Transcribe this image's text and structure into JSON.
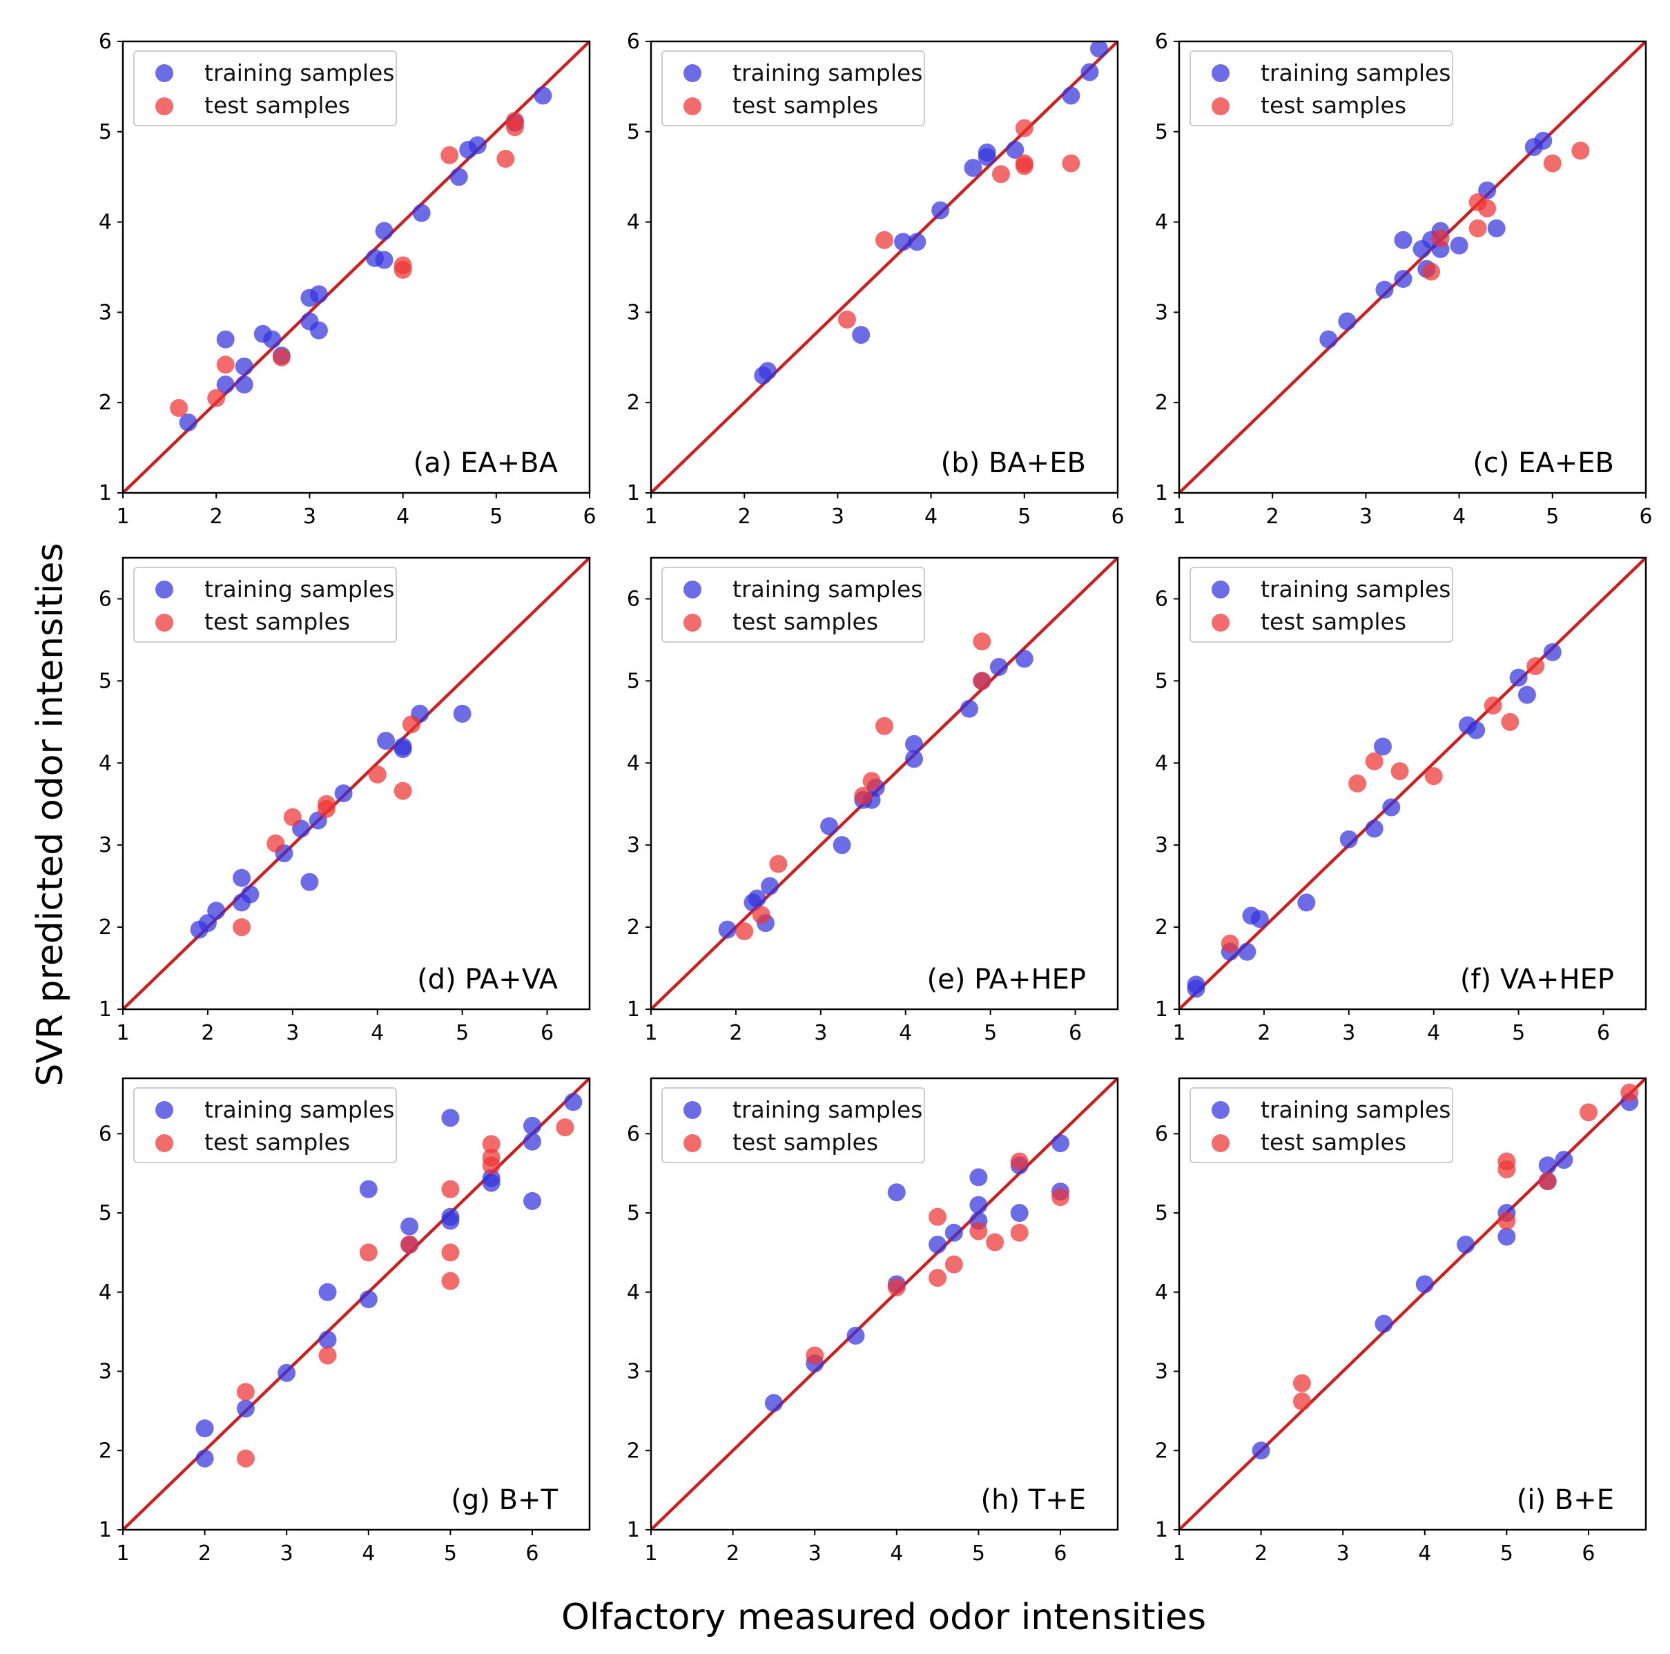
{
  "figure": {
    "xlabel": "Olfactory measured odor intensities",
    "ylabel": "SVR predicted odor intensities"
  },
  "legend": {
    "training": "training samples",
    "test": "test samples"
  },
  "colors": {
    "training": "#3333dd",
    "test": "#ee3333",
    "reference": "#cc1f1f",
    "overlap": "#a0205a"
  },
  "chart_data": [
    {
      "type": "scatter",
      "label": "(a) EA+BA",
      "xlim": [
        1,
        6
      ],
      "ylim": [
        1,
        6
      ],
      "xticks": [
        1,
        2,
        3,
        4,
        5,
        6
      ],
      "yticks": [
        1,
        2,
        3,
        4,
        5,
        6
      ],
      "series": [
        {
          "name": "training samples",
          "points": [
            [
              1.7,
              1.78
            ],
            [
              2.1,
              2.7
            ],
            [
              2.1,
              2.2
            ],
            [
              2.3,
              2.4
            ],
            [
              2.3,
              2.2
            ],
            [
              2.5,
              2.76
            ],
            [
              2.6,
              2.7
            ],
            [
              2.7,
              2.52
            ],
            [
              3.0,
              2.9
            ],
            [
              3.0,
              3.16
            ],
            [
              3.1,
              3.2
            ],
            [
              3.1,
              2.8
            ],
            [
              3.7,
              3.6
            ],
            [
              3.8,
              3.9
            ],
            [
              3.8,
              3.58
            ],
            [
              4.2,
              4.1
            ],
            [
              4.6,
              4.5
            ],
            [
              4.7,
              4.8
            ],
            [
              4.8,
              4.85
            ],
            [
              5.2,
              5.1
            ],
            [
              5.5,
              5.4
            ]
          ]
        },
        {
          "name": "test samples",
          "points": [
            [
              1.6,
              1.94
            ],
            [
              2.0,
              2.05
            ],
            [
              2.1,
              2.42
            ],
            [
              2.7,
              2.5
            ],
            [
              4.0,
              3.52
            ],
            [
              4.0,
              3.47
            ],
            [
              4.5,
              4.74
            ],
            [
              5.1,
              4.7
            ],
            [
              5.2,
              5.05
            ],
            [
              5.2,
              5.12
            ]
          ]
        }
      ]
    },
    {
      "type": "scatter",
      "label": "(b) BA+EB",
      "xlim": [
        1,
        6
      ],
      "ylim": [
        1,
        6
      ],
      "xticks": [
        1,
        2,
        3,
        4,
        5,
        6
      ],
      "yticks": [
        1,
        2,
        3,
        4,
        5,
        6
      ],
      "series": [
        {
          "name": "training samples",
          "points": [
            [
              2.2,
              2.3
            ],
            [
              2.25,
              2.35
            ],
            [
              3.25,
              2.75
            ],
            [
              3.7,
              3.78
            ],
            [
              3.85,
              3.78
            ],
            [
              4.1,
              4.13
            ],
            [
              4.45,
              4.6
            ],
            [
              4.6,
              4.72
            ],
            [
              4.6,
              4.77
            ],
            [
              4.9,
              4.8
            ],
            [
              5.5,
              5.4
            ],
            [
              5.7,
              5.66
            ],
            [
              5.8,
              5.92
            ]
          ]
        },
        {
          "name": "test samples",
          "points": [
            [
              3.1,
              2.92
            ],
            [
              3.5,
              3.8
            ],
            [
              4.75,
              4.53
            ],
            [
              5.0,
              4.62
            ],
            [
              5.0,
              4.65
            ],
            [
              5.0,
              5.04
            ],
            [
              5.5,
              4.65
            ]
          ]
        }
      ]
    },
    {
      "type": "scatter",
      "label": "(c) EA+EB",
      "xlim": [
        1,
        6
      ],
      "ylim": [
        1,
        6
      ],
      "xticks": [
        1,
        2,
        3,
        4,
        5,
        6
      ],
      "yticks": [
        1,
        2,
        3,
        4,
        5,
        6
      ],
      "series": [
        {
          "name": "training samples",
          "points": [
            [
              2.6,
              2.7
            ],
            [
              2.8,
              2.9
            ],
            [
              3.2,
              3.25
            ],
            [
              3.4,
              3.37
            ],
            [
              3.4,
              3.8
            ],
            [
              3.6,
              3.7
            ],
            [
              3.65,
              3.48
            ],
            [
              3.7,
              3.8
            ],
            [
              3.8,
              3.7
            ],
            [
              3.8,
              3.9
            ],
            [
              4.0,
              3.74
            ],
            [
              4.3,
              4.35
            ],
            [
              4.4,
              3.93
            ],
            [
              4.8,
              4.83
            ],
            [
              4.9,
              4.9
            ]
          ]
        },
        {
          "name": "test samples",
          "points": [
            [
              3.7,
              3.45
            ],
            [
              3.8,
              3.82
            ],
            [
              4.2,
              4.22
            ],
            [
              4.2,
              3.93
            ],
            [
              4.3,
              4.15
            ],
            [
              5.0,
              4.65
            ],
            [
              5.3,
              4.79
            ]
          ]
        }
      ]
    },
    {
      "type": "scatter",
      "label": "(d) PA+VA",
      "xlim": [
        1,
        6.5
      ],
      "ylim": [
        1,
        6.5
      ],
      "xticks": [
        1,
        2,
        3,
        4,
        5,
        6
      ],
      "yticks": [
        1,
        2,
        3,
        4,
        5,
        6
      ],
      "series": [
        {
          "name": "training samples",
          "points": [
            [
              1.9,
              1.97
            ],
            [
              2.0,
              2.05
            ],
            [
              2.1,
              2.2
            ],
            [
              2.4,
              2.6
            ],
            [
              2.4,
              2.3
            ],
            [
              2.5,
              2.4
            ],
            [
              2.9,
              2.9
            ],
            [
              3.1,
              3.2
            ],
            [
              3.2,
              2.55
            ],
            [
              3.3,
              3.3
            ],
            [
              3.6,
              3.63
            ],
            [
              4.1,
              4.27
            ],
            [
              4.3,
              4.17
            ],
            [
              4.3,
              4.2
            ],
            [
              4.5,
              4.6
            ],
            [
              5.0,
              4.6
            ]
          ]
        },
        {
          "name": "test samples",
          "points": [
            [
              2.4,
              2.0
            ],
            [
              2.8,
              3.02
            ],
            [
              3.0,
              3.34
            ],
            [
              3.4,
              3.5
            ],
            [
              3.4,
              3.44
            ],
            [
              4.0,
              3.86
            ],
            [
              4.3,
              3.66
            ],
            [
              4.4,
              4.47
            ]
          ]
        }
      ]
    },
    {
      "type": "scatter",
      "label": "(e) PA+HEP",
      "xlim": [
        1,
        6.5
      ],
      "ylim": [
        1,
        6.5
      ],
      "xticks": [
        1,
        2,
        3,
        4,
        5,
        6
      ],
      "yticks": [
        1,
        2,
        3,
        4,
        5,
        6
      ],
      "series": [
        {
          "name": "training samples",
          "points": [
            [
              1.9,
              1.97
            ],
            [
              2.2,
              2.3
            ],
            [
              2.25,
              2.35
            ],
            [
              2.35,
              2.05
            ],
            [
              2.4,
              2.5
            ],
            [
              3.1,
              3.23
            ],
            [
              3.25,
              3.0
            ],
            [
              3.5,
              3.55
            ],
            [
              3.6,
              3.55
            ],
            [
              3.65,
              3.7
            ],
            [
              4.1,
              4.05
            ],
            [
              4.1,
              4.23
            ],
            [
              4.75,
              4.66
            ],
            [
              4.9,
              5.0
            ],
            [
              5.1,
              5.17
            ],
            [
              5.4,
              5.27
            ]
          ]
        },
        {
          "name": "test samples",
          "points": [
            [
              2.1,
              1.95
            ],
            [
              2.3,
              2.15
            ],
            [
              2.5,
              2.77
            ],
            [
              3.5,
              3.6
            ],
            [
              3.6,
              3.78
            ],
            [
              3.75,
              4.45
            ],
            [
              4.9,
              5.0
            ],
            [
              4.9,
              5.48
            ]
          ]
        }
      ]
    },
    {
      "type": "scatter",
      "label": "(f) VA+HEP",
      "xlim": [
        1,
        6.5
      ],
      "ylim": [
        1,
        6.5
      ],
      "xticks": [
        1,
        2,
        3,
        4,
        5,
        6
      ],
      "yticks": [
        1,
        2,
        3,
        4,
        5,
        6
      ],
      "series": [
        {
          "name": "training samples",
          "points": [
            [
              1.2,
              1.25
            ],
            [
              1.2,
              1.3
            ],
            [
              1.6,
              1.7
            ],
            [
              1.8,
              1.7
            ],
            [
              1.85,
              2.14
            ],
            [
              1.95,
              2.1
            ],
            [
              2.5,
              2.3
            ],
            [
              3.0,
              3.07
            ],
            [
              3.3,
              3.2
            ],
            [
              3.4,
              4.2
            ],
            [
              3.5,
              3.46
            ],
            [
              4.4,
              4.46
            ],
            [
              4.5,
              4.4
            ],
            [
              5.0,
              5.04
            ],
            [
              5.1,
              4.83
            ],
            [
              5.4,
              5.35
            ]
          ]
        },
        {
          "name": "test samples",
          "points": [
            [
              1.6,
              1.8
            ],
            [
              3.1,
              3.75
            ],
            [
              3.3,
              4.02
            ],
            [
              3.6,
              3.9
            ],
            [
              4.0,
              3.84
            ],
            [
              4.7,
              4.7
            ],
            [
              4.9,
              4.5
            ],
            [
              5.2,
              5.18
            ]
          ]
        }
      ]
    },
    {
      "type": "scatter",
      "label": "(g) B+T",
      "xlim": [
        1,
        6.7
      ],
      "ylim": [
        1,
        6.7
      ],
      "xticks": [
        1,
        2,
        3,
        4,
        5,
        6
      ],
      "yticks": [
        1,
        2,
        3,
        4,
        5,
        6
      ],
      "series": [
        {
          "name": "training samples",
          "points": [
            [
              2.0,
              2.28
            ],
            [
              2.0,
              1.9
            ],
            [
              2.5,
              2.53
            ],
            [
              3.0,
              2.98
            ],
            [
              3.5,
              3.4
            ],
            [
              3.5,
              4.0
            ],
            [
              4.0,
              3.91
            ],
            [
              4.0,
              5.3
            ],
            [
              4.5,
              4.83
            ],
            [
              4.5,
              4.6
            ],
            [
              5.0,
              4.9
            ],
            [
              5.0,
              4.95
            ],
            [
              5.0,
              6.2
            ],
            [
              5.5,
              5.38
            ],
            [
              5.5,
              5.44
            ],
            [
              6.0,
              5.9
            ],
            [
              6.0,
              6.1
            ],
            [
              6.0,
              5.15
            ],
            [
              6.5,
              6.4
            ]
          ]
        },
        {
          "name": "test samples",
          "points": [
            [
              2.5,
              2.74
            ],
            [
              2.5,
              1.9
            ],
            [
              3.5,
              3.2
            ],
            [
              4.0,
              4.5
            ],
            [
              4.5,
              4.6
            ],
            [
              5.0,
              4.14
            ],
            [
              5.0,
              4.5
            ],
            [
              5.0,
              5.3
            ],
            [
              5.5,
              5.6
            ],
            [
              5.5,
              5.7
            ],
            [
              5.5,
              5.87
            ],
            [
              6.4,
              6.08
            ]
          ]
        }
      ]
    },
    {
      "type": "scatter",
      "label": "(h) T+E",
      "xlim": [
        1,
        6.7
      ],
      "ylim": [
        1,
        6.7
      ],
      "xticks": [
        1,
        2,
        3,
        4,
        5,
        6
      ],
      "yticks": [
        1,
        2,
        3,
        4,
        5,
        6
      ],
      "series": [
        {
          "name": "training samples",
          "points": [
            [
              2.5,
              2.6
            ],
            [
              3.0,
              3.1
            ],
            [
              3.5,
              3.45
            ],
            [
              4.0,
              4.1
            ],
            [
              4.0,
              5.26
            ],
            [
              4.5,
              4.6
            ],
            [
              4.7,
              4.75
            ],
            [
              5.0,
              4.9
            ],
            [
              5.0,
              5.1
            ],
            [
              5.0,
              5.45
            ],
            [
              5.5,
              5.0
            ],
            [
              5.5,
              5.6
            ],
            [
              6.0,
              5.27
            ],
            [
              6.0,
              5.88
            ]
          ]
        },
        {
          "name": "test samples",
          "points": [
            [
              3.0,
              3.2
            ],
            [
              4.0,
              4.06
            ],
            [
              4.5,
              4.18
            ],
            [
              4.5,
              4.95
            ],
            [
              4.7,
              4.35
            ],
            [
              5.0,
              4.77
            ],
            [
              5.2,
              4.63
            ],
            [
              5.5,
              4.75
            ],
            [
              5.5,
              5.65
            ],
            [
              6.0,
              5.2
            ]
          ]
        }
      ]
    },
    {
      "type": "scatter",
      "label": "(i) B+E",
      "xlim": [
        1,
        6.7
      ],
      "ylim": [
        1,
        6.7
      ],
      "xticks": [
        1,
        2,
        3,
        4,
        5,
        6
      ],
      "yticks": [
        1,
        2,
        3,
        4,
        5,
        6
      ],
      "series": [
        {
          "name": "training samples",
          "points": [
            [
              2.0,
              2.0
            ],
            [
              3.5,
              3.6
            ],
            [
              4.0,
              4.1
            ],
            [
              4.5,
              4.6
            ],
            [
              5.0,
              4.7
            ],
            [
              5.0,
              5.0
            ],
            [
              5.5,
              5.4
            ],
            [
              5.5,
              5.6
            ],
            [
              5.7,
              5.67
            ],
            [
              6.5,
              6.4
            ]
          ]
        },
        {
          "name": "test samples",
          "points": [
            [
              2.5,
              2.85
            ],
            [
              2.5,
              2.62
            ],
            [
              5.0,
              4.9
            ],
            [
              5.0,
              5.55
            ],
            [
              5.0,
              5.65
            ],
            [
              5.5,
              5.4
            ],
            [
              6.0,
              6.27
            ],
            [
              6.5,
              6.52
            ]
          ]
        }
      ]
    }
  ]
}
